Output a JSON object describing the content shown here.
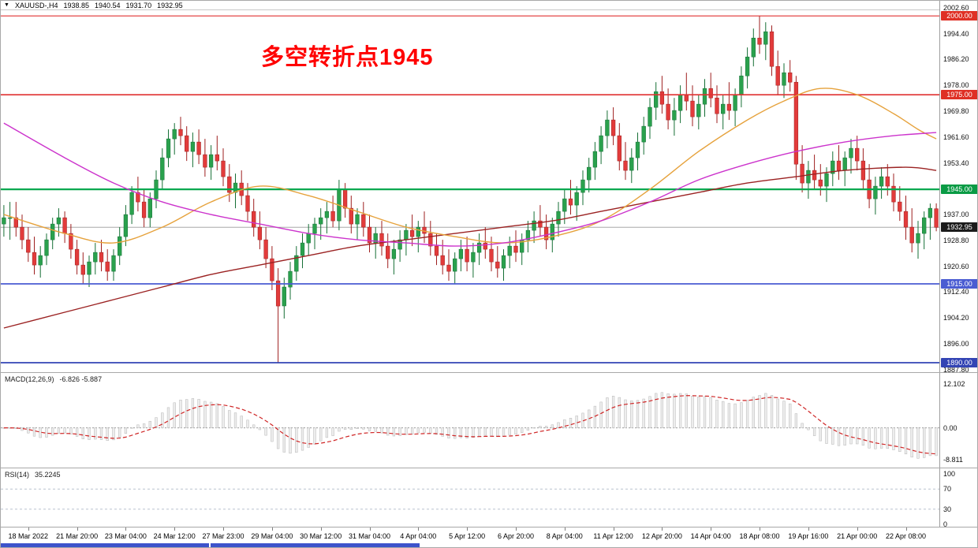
{
  "window": {
    "symbol_period": "XAUUSD-,H4",
    "open": "1938.85",
    "high": "1940.54",
    "low": "1931.70",
    "close": "1932.95"
  },
  "annotation": {
    "text": "多空转折点1945",
    "color": "#ff0000"
  },
  "current_price": 1932.95,
  "chrome": {
    "minimized_bar_color": "#3d53cb"
  },
  "price_axis": {
    "ticks": [
      "2002.60",
      "1994.40",
      "1986.20",
      "1978.00",
      "1969.80",
      "1961.60",
      "1953.40",
      "1937.00",
      "1928.80",
      "1920.60",
      "1912.40",
      "1904.20",
      "1896.00",
      "1887.80"
    ],
    "badges": [
      {
        "label": "2000.00",
        "price": 2000,
        "color": "#df3025"
      },
      {
        "label": "1975.00",
        "price": 1975,
        "color": "#df3025"
      },
      {
        "label": "1945.00",
        "price": 1945,
        "color": "#0a9b45"
      },
      {
        "label": "1915.00",
        "price": 1915,
        "color": "#4a5cd2"
      },
      {
        "label": "1890.00",
        "price": 1890,
        "color": "#3344b4"
      },
      {
        "label": "1932.95",
        "price": 1932.95,
        "color": "#1b1b1b"
      }
    ]
  },
  "levels": [
    {
      "price": 2000,
      "color": "#e03131",
      "width": 1.2
    },
    {
      "price": 1975,
      "color": "#e03131",
      "width": 1.7
    },
    {
      "price": 1945,
      "color": "#0aa84f",
      "width": 2.2
    },
    {
      "price": 1915,
      "color": "#4a5cd2",
      "width": 1.7
    },
    {
      "price": 1890,
      "color": "#3344b4",
      "width": 1.7
    }
  ],
  "chart_data": {
    "type": "candlestick",
    "symbol": "XAUUSD-",
    "timeframe": "H4",
    "y_range": [
      1887.0,
      2001.8
    ],
    "price_tick_step": 8.2,
    "candle_colors": {
      "up": "#2aa14d",
      "up_stroke": "#166f36",
      "down": "#e23b3b",
      "down_stroke": "#9e1f1f"
    },
    "candles": [
      [
        1934,
        1940,
        1930,
        1936
      ],
      [
        1936,
        1941,
        1929,
        1936
      ],
      [
        1936,
        1941,
        1930,
        1933
      ],
      [
        1933,
        1937,
        1926,
        1929
      ],
      [
        1929,
        1933,
        1922,
        1925
      ],
      [
        1925,
        1930,
        1918,
        1921
      ],
      [
        1921,
        1927,
        1917,
        1924
      ],
      [
        1924,
        1931,
        1921,
        1929
      ],
      [
        1929,
        1936,
        1926,
        1934
      ],
      [
        1934,
        1939,
        1930,
        1936
      ],
      [
        1936,
        1938,
        1928,
        1931
      ],
      [
        1931,
        1934,
        1923,
        1926
      ],
      [
        1926,
        1929,
        1918,
        1921
      ],
      [
        1921,
        1925,
        1915,
        1918
      ],
      [
        1918,
        1924,
        1914,
        1922
      ],
      [
        1922,
        1928,
        1918,
        1925
      ],
      [
        1925,
        1929,
        1919,
        1922
      ],
      [
        1922,
        1926,
        1916,
        1919
      ],
      [
        1919,
        1926,
        1916,
        1924
      ],
      [
        1924,
        1933,
        1921,
        1930
      ],
      [
        1930,
        1940,
        1927,
        1937
      ],
      [
        1937,
        1946,
        1934,
        1944
      ],
      [
        1944,
        1949,
        1938,
        1941
      ],
      [
        1941,
        1945,
        1933,
        1936
      ],
      [
        1936,
        1944,
        1933,
        1942
      ],
      [
        1942,
        1951,
        1939,
        1948
      ],
      [
        1948,
        1958,
        1945,
        1955
      ],
      [
        1955,
        1964,
        1952,
        1961
      ],
      [
        1961,
        1966,
        1956,
        1964
      ],
      [
        1964,
        1968,
        1959,
        1962
      ],
      [
        1962,
        1965,
        1954,
        1957
      ],
      [
        1957,
        1963,
        1952,
        1960
      ],
      [
        1960,
        1964,
        1953,
        1956
      ],
      [
        1956,
        1961,
        1949,
        1952
      ],
      [
        1952,
        1959,
        1948,
        1956
      ],
      [
        1956,
        1962,
        1951,
        1954
      ],
      [
        1954,
        1958,
        1946,
        1949
      ],
      [
        1949,
        1953,
        1941,
        1944
      ],
      [
        1944,
        1950,
        1939,
        1947
      ],
      [
        1947,
        1951,
        1940,
        1943
      ],
      [
        1943,
        1947,
        1935,
        1938
      ],
      [
        1938,
        1942,
        1930,
        1933
      ],
      [
        1933,
        1938,
        1926,
        1929
      ],
      [
        1929,
        1933,
        1920,
        1923
      ],
      [
        1923,
        1927,
        1913,
        1916
      ],
      [
        1916,
        1920,
        1890,
        1908
      ],
      [
        1908,
        1917,
        1904,
        1914
      ],
      [
        1914,
        1922,
        1910,
        1919
      ],
      [
        1919,
        1927,
        1916,
        1924
      ],
      [
        1924,
        1931,
        1920,
        1928
      ],
      [
        1928,
        1934,
        1924,
        1931
      ],
      [
        1931,
        1936,
        1926,
        1934
      ],
      [
        1934,
        1939,
        1929,
        1936
      ],
      [
        1936,
        1941,
        1931,
        1938
      ],
      [
        1938,
        1943,
        1933,
        1935
      ],
      [
        1935,
        1948,
        1932,
        1945
      ],
      [
        1945,
        1947,
        1936,
        1939
      ],
      [
        1939,
        1943,
        1931,
        1934
      ],
      [
        1934,
        1939,
        1929,
        1937
      ],
      [
        1937,
        1941,
        1930,
        1933
      ],
      [
        1933,
        1937,
        1925,
        1928
      ],
      [
        1928,
        1933,
        1923,
        1931
      ],
      [
        1931,
        1935,
        1924,
        1927
      ],
      [
        1927,
        1931,
        1920,
        1923
      ],
      [
        1923,
        1929,
        1918,
        1926
      ],
      [
        1926,
        1932,
        1922,
        1929
      ],
      [
        1929,
        1934,
        1924,
        1932
      ],
      [
        1932,
        1937,
        1927,
        1930
      ],
      [
        1930,
        1935,
        1925,
        1933
      ],
      [
        1933,
        1938,
        1928,
        1931
      ],
      [
        1931,
        1935,
        1924,
        1927
      ],
      [
        1927,
        1931,
        1921,
        1924
      ],
      [
        1924,
        1929,
        1918,
        1921
      ],
      [
        1921,
        1926,
        1916,
        1919
      ],
      [
        1919,
        1925,
        1915,
        1923
      ],
      [
        1923,
        1929,
        1919,
        1926
      ],
      [
        1926,
        1930,
        1919,
        1922
      ],
      [
        1922,
        1928,
        1917,
        1925
      ],
      [
        1925,
        1931,
        1921,
        1928
      ],
      [
        1928,
        1933,
        1923,
        1926
      ],
      [
        1926,
        1930,
        1919,
        1922
      ],
      [
        1922,
        1927,
        1917,
        1920
      ],
      [
        1920,
        1926,
        1916,
        1924
      ],
      [
        1924,
        1930,
        1920,
        1927
      ],
      [
        1927,
        1932,
        1922,
        1925
      ],
      [
        1925,
        1931,
        1921,
        1929
      ],
      [
        1929,
        1935,
        1925,
        1932
      ],
      [
        1932,
        1938,
        1928,
        1935
      ],
      [
        1935,
        1940,
        1930,
        1933
      ],
      [
        1933,
        1937,
        1926,
        1929
      ],
      [
        1929,
        1936,
        1925,
        1934
      ],
      [
        1934,
        1941,
        1930,
        1938
      ],
      [
        1938,
        1945,
        1934,
        1942
      ],
      [
        1942,
        1948,
        1937,
        1940
      ],
      [
        1940,
        1946,
        1935,
        1944
      ],
      [
        1944,
        1951,
        1940,
        1948
      ],
      [
        1948,
        1955,
        1944,
        1952
      ],
      [
        1952,
        1960,
        1948,
        1957
      ],
      [
        1957,
        1965,
        1953,
        1962
      ],
      [
        1962,
        1970,
        1958,
        1967
      ],
      [
        1967,
        1971,
        1959,
        1962
      ],
      [
        1962,
        1966,
        1951,
        1954
      ],
      [
        1954,
        1960,
        1948,
        1951
      ],
      [
        1951,
        1958,
        1947,
        1955
      ],
      [
        1955,
        1963,
        1951,
        1960
      ],
      [
        1960,
        1968,
        1956,
        1965
      ],
      [
        1965,
        1974,
        1961,
        1971
      ],
      [
        1971,
        1979,
        1967,
        1976
      ],
      [
        1976,
        1981,
        1969,
        1972
      ],
      [
        1972,
        1977,
        1964,
        1967
      ],
      [
        1967,
        1974,
        1962,
        1970
      ],
      [
        1970,
        1978,
        1966,
        1975
      ],
      [
        1975,
        1982,
        1970,
        1973
      ],
      [
        1973,
        1978,
        1965,
        1968
      ],
      [
        1968,
        1975,
        1964,
        1972
      ],
      [
        1972,
        1980,
        1968,
        1977
      ],
      [
        1977,
        1982,
        1971,
        1974
      ],
      [
        1974,
        1978,
        1966,
        1969
      ],
      [
        1969,
        1975,
        1964,
        1972
      ],
      [
        1972,
        1979,
        1967,
        1970
      ],
      [
        1970,
        1977,
        1965,
        1975
      ],
      [
        1975,
        1984,
        1971,
        1981
      ],
      [
        1981,
        1990,
        1977,
        1987
      ],
      [
        1987,
        1996,
        1984,
        1993
      ],
      [
        1993,
        2000,
        1988,
        1991
      ],
      [
        1991,
        1998,
        1986,
        1995
      ],
      [
        1995,
        1997,
        1981,
        1984
      ],
      [
        1984,
        1989,
        1975,
        1978
      ],
      [
        1978,
        1985,
        1974,
        1982
      ],
      [
        1982,
        1986,
        1976,
        1979
      ],
      [
        1979,
        1981,
        1948,
        1953
      ],
      [
        1953,
        1959,
        1944,
        1947
      ],
      [
        1947,
        1954,
        1942,
        1951
      ],
      [
        1951,
        1956,
        1945,
        1948
      ],
      [
        1948,
        1953,
        1943,
        1946
      ],
      [
        1946,
        1952,
        1941,
        1950
      ],
      [
        1950,
        1957,
        1946,
        1954
      ],
      [
        1954,
        1959,
        1948,
        1951
      ],
      [
        1951,
        1957,
        1946,
        1955
      ],
      [
        1955,
        1961,
        1950,
        1958
      ],
      [
        1958,
        1962,
        1951,
        1954
      ],
      [
        1954,
        1958,
        1945,
        1948
      ],
      [
        1948,
        1953,
        1939,
        1942
      ],
      [
        1942,
        1949,
        1937,
        1946
      ],
      [
        1946,
        1952,
        1942,
        1949
      ],
      [
        1949,
        1953,
        1943,
        1946
      ],
      [
        1946,
        1950,
        1938,
        1941
      ],
      [
        1941,
        1946,
        1935,
        1938
      ],
      [
        1938,
        1943,
        1929,
        1933
      ],
      [
        1933,
        1939,
        1925,
        1928
      ],
      [
        1928,
        1935,
        1923,
        1931
      ],
      [
        1931,
        1938,
        1926,
        1936
      ],
      [
        1936,
        1940.5,
        1929,
        1939
      ],
      [
        1938.85,
        1940.54,
        1931.7,
        1932.95
      ]
    ],
    "time_labels": [
      {
        "i": 4,
        "t": "18 Mar 2022"
      },
      {
        "i": 12,
        "t": "21 Mar 20:00"
      },
      {
        "i": 20,
        "t": "23 Mar 04:00"
      },
      {
        "i": 28,
        "t": "24 Mar 12:00"
      },
      {
        "i": 36,
        "t": "27 Mar 23:00"
      },
      {
        "i": 44,
        "t": "29 Mar 04:00"
      },
      {
        "i": 52,
        "t": "30 Mar 12:00"
      },
      {
        "i": 60,
        "t": "31 Mar 04:00"
      },
      {
        "i": 68,
        "t": "4 Apr 04:00"
      },
      {
        "i": 76,
        "t": "5 Apr 12:00"
      },
      {
        "i": 84,
        "t": "6 Apr 20:00"
      },
      {
        "i": 92,
        "t": "8 Apr 04:00"
      },
      {
        "i": 100,
        "t": "11 Apr 12:00"
      },
      {
        "i": 108,
        "t": "12 Apr 20:00"
      },
      {
        "i": 116,
        "t": "14 Apr 04:00"
      },
      {
        "i": 124,
        "t": "18 Apr 08:00"
      },
      {
        "i": 132,
        "t": "19 Apr 16:00"
      },
      {
        "i": 140,
        "t": "21 Apr 00:00"
      },
      {
        "i": 148,
        "t": "22 Apr 08:00"
      }
    ],
    "moving_averages": [
      {
        "name": "ma-long-dark-red",
        "color": "#9b2222",
        "width": 1.4,
        "points": [
          [
            0,
            1901
          ],
          [
            10,
            1906
          ],
          [
            18,
            1910
          ],
          [
            26,
            1914
          ],
          [
            34,
            1918
          ],
          [
            42,
            1921
          ],
          [
            50,
            1924
          ],
          [
            58,
            1927
          ],
          [
            66,
            1929
          ],
          [
            74,
            1931
          ],
          [
            82,
            1933
          ],
          [
            90,
            1935
          ],
          [
            98,
            1938
          ],
          [
            106,
            1941
          ],
          [
            114,
            1944
          ],
          [
            122,
            1947
          ],
          [
            130,
            1949
          ],
          [
            138,
            1951
          ],
          [
            148,
            1952
          ],
          [
            153,
            1951
          ]
        ]
      },
      {
        "name": "ma-medium-orange",
        "color": "#e6a23c",
        "width": 1.4,
        "points": [
          [
            0,
            1937
          ],
          [
            10,
            1931
          ],
          [
            18,
            1928
          ],
          [
            26,
            1933
          ],
          [
            34,
            1941
          ],
          [
            42,
            1946
          ],
          [
            50,
            1943
          ],
          [
            58,
            1938
          ],
          [
            66,
            1933
          ],
          [
            74,
            1930
          ],
          [
            82,
            1928
          ],
          [
            90,
            1930
          ],
          [
            98,
            1935
          ],
          [
            106,
            1945
          ],
          [
            114,
            1957
          ],
          [
            122,
            1967
          ],
          [
            128,
            1973
          ],
          [
            134,
            1977
          ],
          [
            140,
            1975
          ],
          [
            146,
            1969
          ],
          [
            150,
            1964
          ],
          [
            153,
            1961
          ]
        ]
      },
      {
        "name": "ma-slow-magenta",
        "color": "#cc33cc",
        "width": 1.4,
        "points": [
          [
            0,
            1966
          ],
          [
            10,
            1955
          ],
          [
            18,
            1947
          ],
          [
            26,
            1941
          ],
          [
            34,
            1937
          ],
          [
            42,
            1934
          ],
          [
            50,
            1931
          ],
          [
            58,
            1929
          ],
          [
            66,
            1928
          ],
          [
            74,
            1927
          ],
          [
            82,
            1928
          ],
          [
            90,
            1931
          ],
          [
            98,
            1935
          ],
          [
            106,
            1941
          ],
          [
            114,
            1948
          ],
          [
            122,
            1953
          ],
          [
            130,
            1957
          ],
          [
            138,
            1960
          ],
          [
            146,
            1962
          ],
          [
            153,
            1963
          ]
        ]
      }
    ],
    "indicators": {
      "macd": {
        "label": "MACD(12,26,9)",
        "values": "-6.826 -5.887",
        "fast": 12,
        "slow": 26,
        "signal_period": 9,
        "range": [
          -11,
          15.2
        ],
        "axis_labels": [
          "12.102",
          "0.00",
          "-8.811"
        ],
        "bar_color": "#ededed",
        "bar_stroke": "#b6b6b6",
        "signal_color": "#cf2525"
      },
      "rsi": {
        "label": "RSI(14)",
        "value": "35.2245",
        "period": 14,
        "range": [
          0,
          100
        ],
        "guides": [
          70,
          30
        ],
        "axis_labels": [
          "100",
          "70",
          "30",
          "0"
        ],
        "line_color": "#3f79b8"
      }
    }
  }
}
